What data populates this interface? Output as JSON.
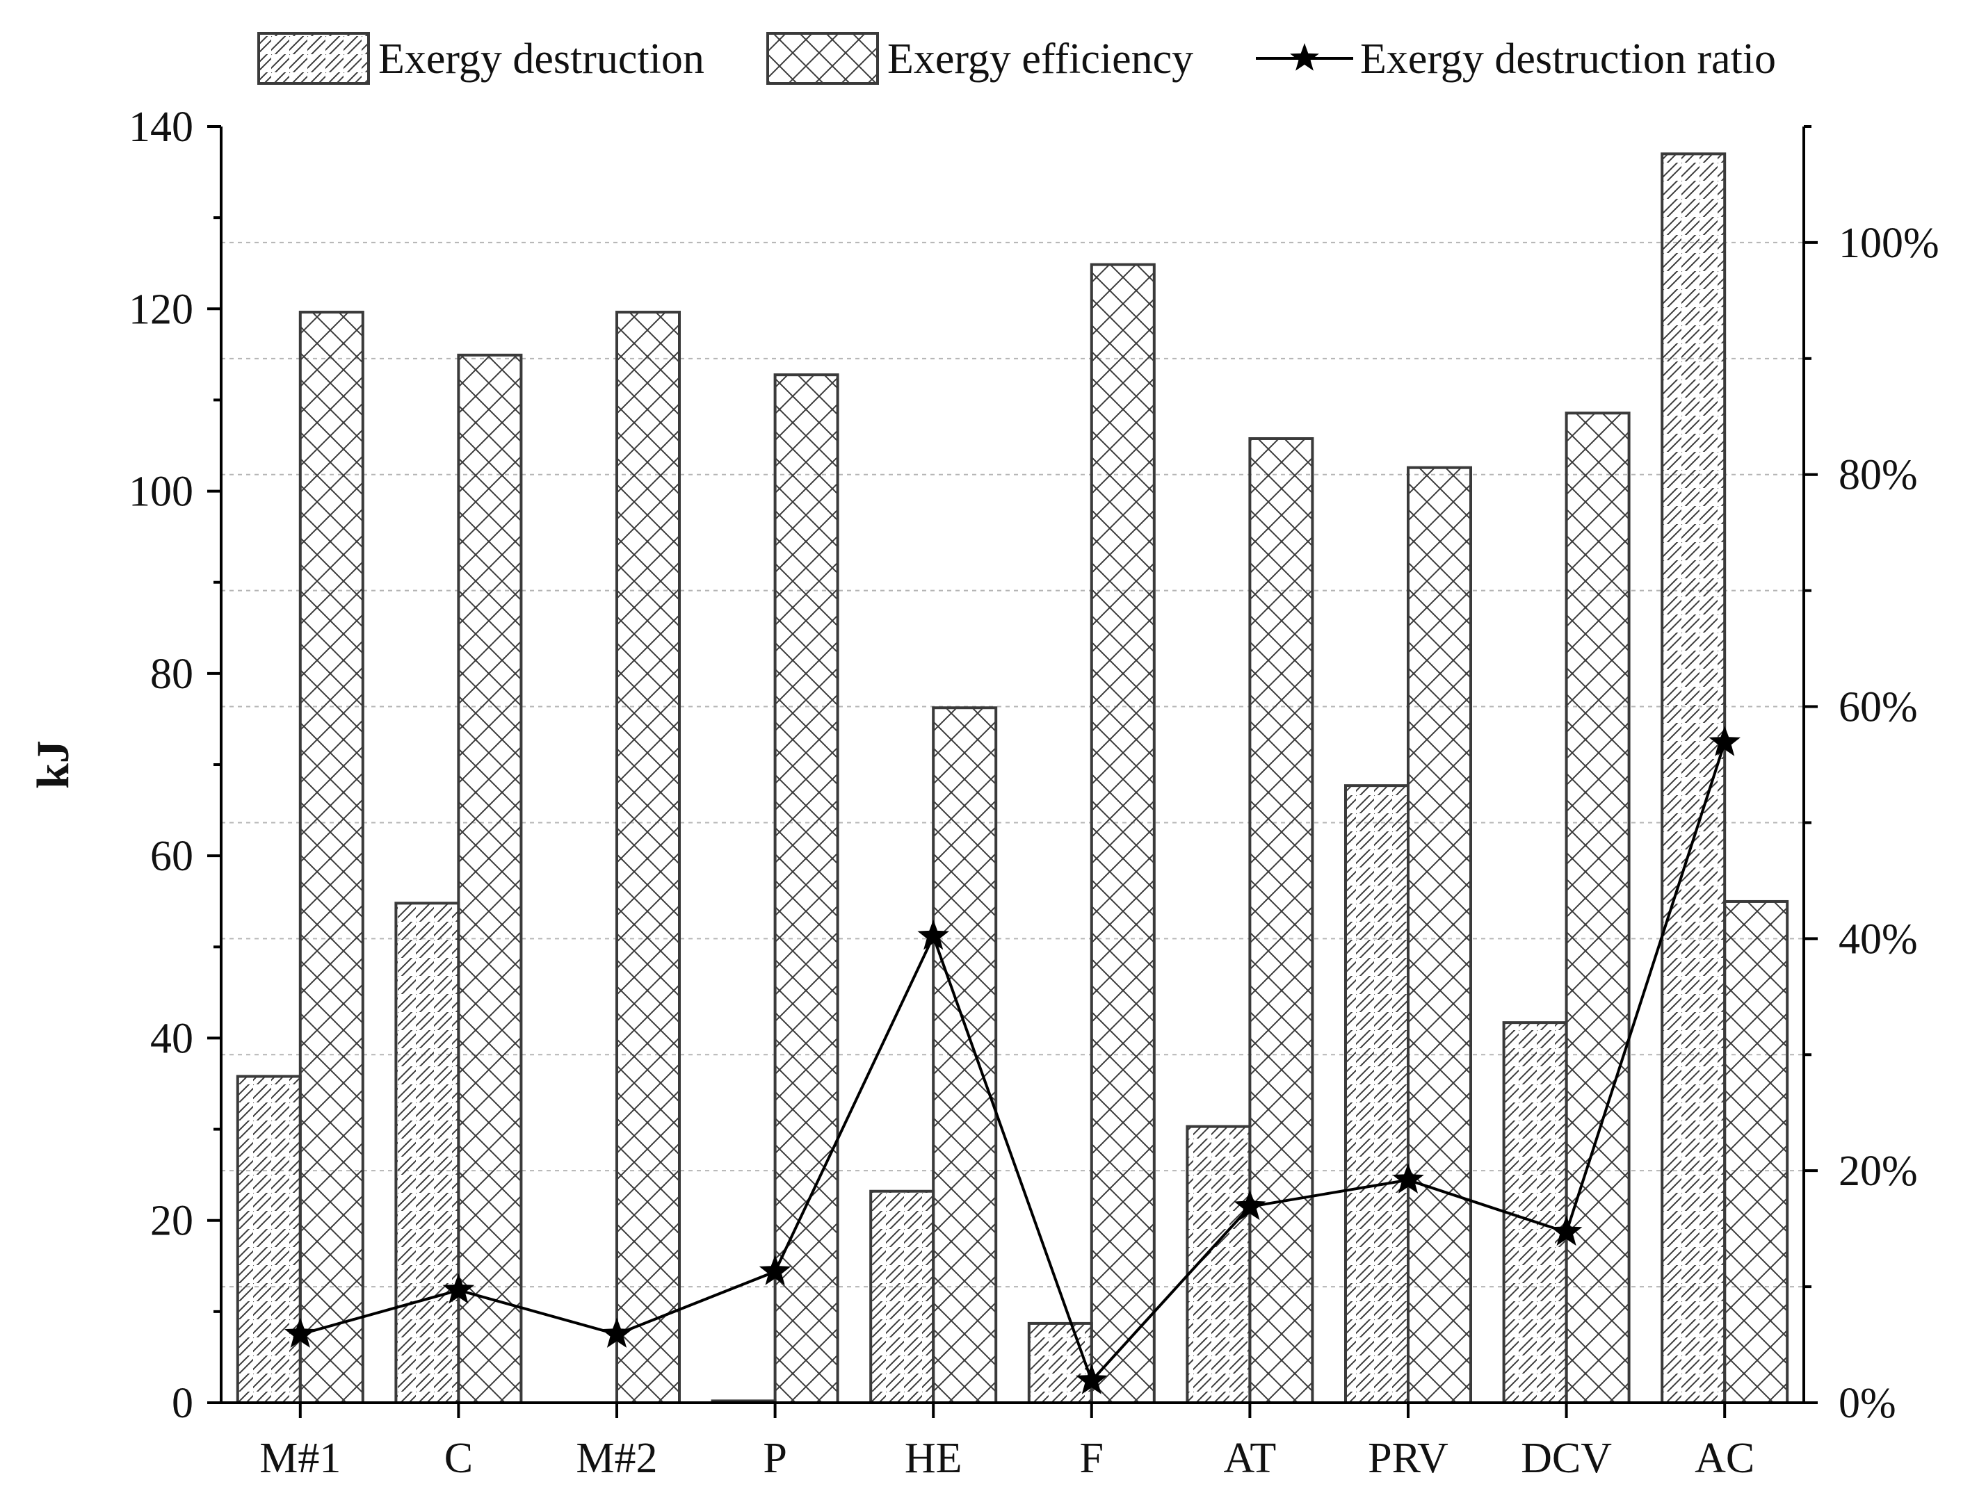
{
  "chart_data": {
    "type": "bar",
    "categories": [
      "M#1",
      "C",
      "M#2",
      "P",
      "HE",
      "F",
      "AT",
      "PRV",
      "DCV",
      "AC"
    ],
    "series": [
      {
        "name": "Exergy destruction",
        "kind": "bar",
        "axis": "left",
        "pattern": "diagonal-hatch",
        "values": [
          35.8,
          54.8,
          0,
          0.2,
          23.2,
          8.7,
          30.3,
          67.7,
          41.7,
          137.0
        ]
      },
      {
        "name": "Exergy efficiency",
        "kind": "bar",
        "axis": "right",
        "pattern": "cross-hatch",
        "values": [
          94.0,
          90.3,
          94.0,
          88.6,
          59.9,
          98.1,
          83.1,
          80.6,
          85.3,
          43.2
        ]
      },
      {
        "name": "Exergy destruction ratio",
        "kind": "line",
        "marker": "star",
        "axis": "right",
        "values": [
          5.9,
          9.7,
          5.9,
          11.3,
          40.2,
          1.9,
          16.9,
          19.2,
          14.7,
          56.9
        ]
      }
    ],
    "ylabel": "kJ",
    "ylim": [
      0,
      140
    ],
    "y_ticks": [
      "0",
      "20",
      "40",
      "60",
      "80",
      "100",
      "120",
      "140"
    ],
    "y2_unit": "%",
    "y2lim": [
      0,
      110
    ],
    "y2_ticks": [
      "0%",
      "20%",
      "40%",
      "60%",
      "80%",
      "100%"
    ],
    "grid": true,
    "legend_position": "top"
  },
  "colors": {
    "bar_stroke": "#3a3a3a",
    "hatch": "#3a3a3a",
    "line": "#000000",
    "grid": "#b5b5b5",
    "axis": "#000000"
  }
}
